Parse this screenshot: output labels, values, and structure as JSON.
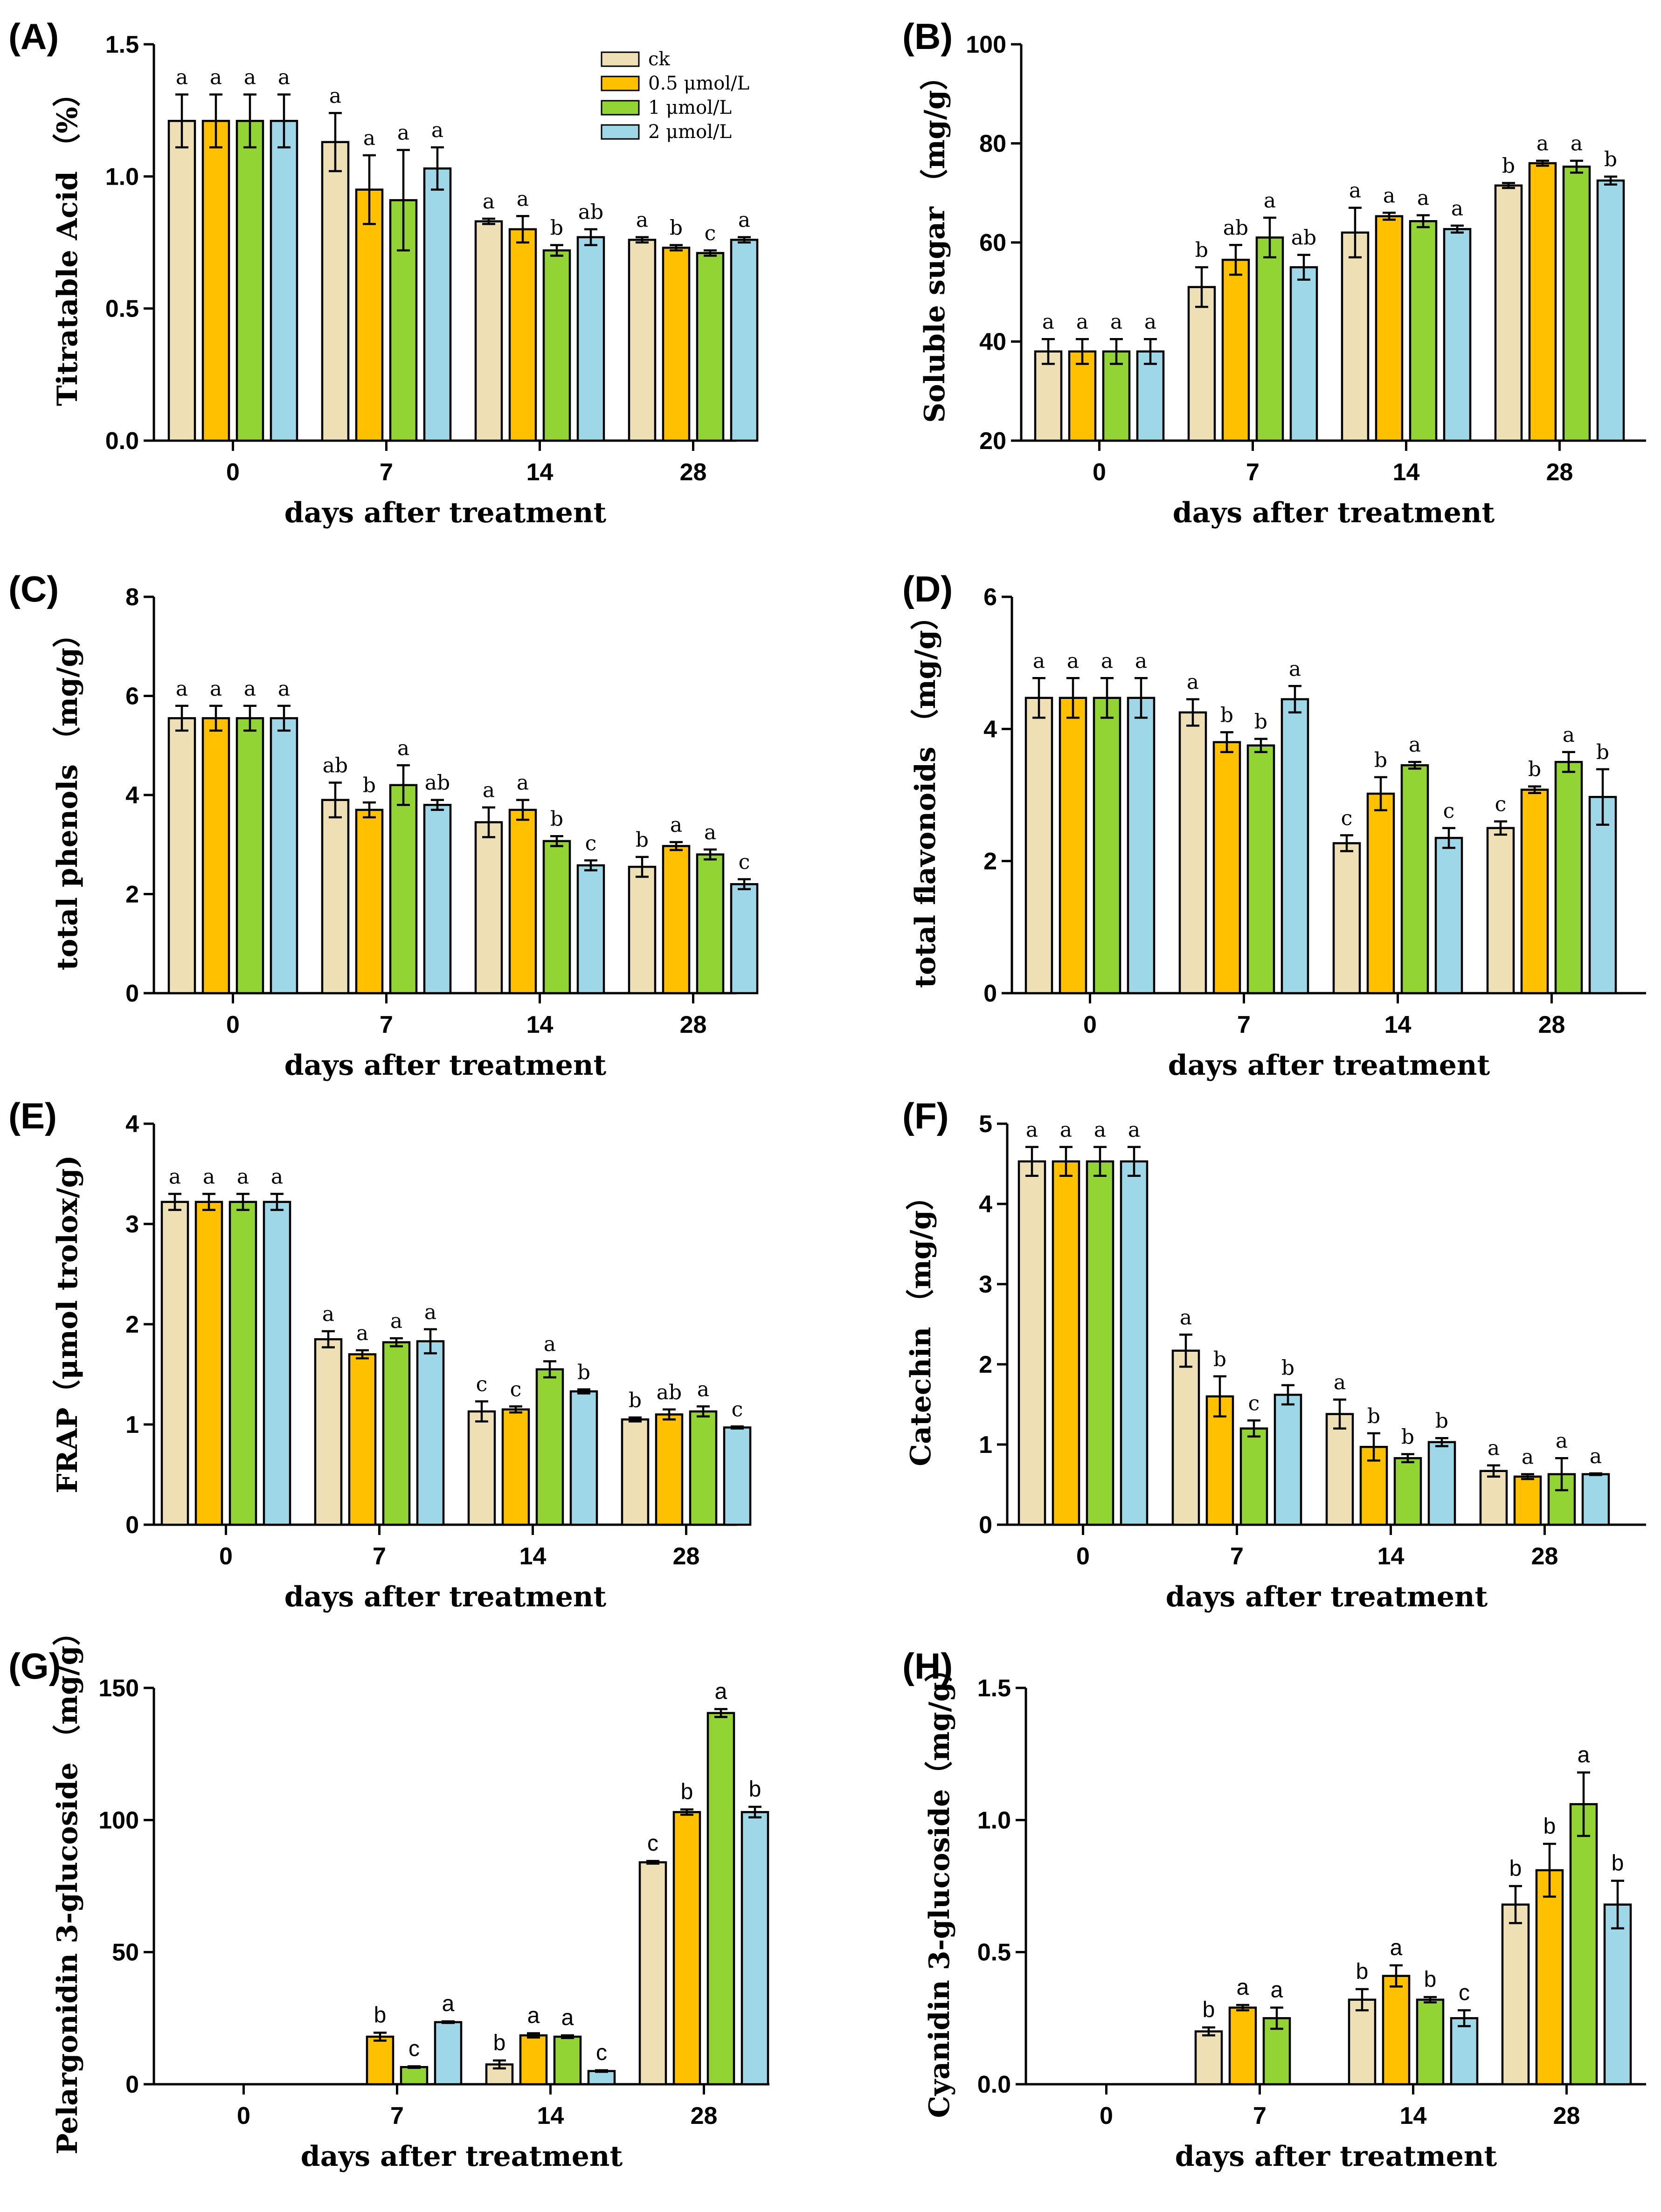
{
  "figure": {
    "legend": [
      {
        "label": "ck",
        "color": "#EEE0B4"
      },
      {
        "label": "0.5 μmol/L",
        "color": "#FFC000"
      },
      {
        "label": "1 μmol/L",
        "color": "#92D433"
      },
      {
        "label": "2 μmol/L",
        "color": "#9DD7E8"
      }
    ]
  },
  "chart_data": [
    {
      "panel": "(A)",
      "type": "bar",
      "ylabel": "Titratable Acid （%）",
      "xlabel": "days after treatment",
      "ylim": [
        0,
        1.5
      ],
      "yticks": [
        "0.0",
        "0.5",
        "1.0",
        "1.5"
      ],
      "categories": [
        "0",
        "7",
        "14",
        "28"
      ],
      "series": [
        {
          "name": "ck",
          "values": [
            1.21,
            1.13,
            0.83,
            0.76
          ],
          "errors": [
            0.1,
            0.11,
            0.01,
            0.01
          ],
          "letters": [
            "a",
            "a",
            "a",
            "a"
          ]
        },
        {
          "name": "0.5 μmol/L",
          "values": [
            1.21,
            0.95,
            0.8,
            0.73
          ],
          "errors": [
            0.1,
            0.13,
            0.05,
            0.01
          ],
          "letters": [
            "a",
            "a",
            "a",
            "b"
          ]
        },
        {
          "name": "1 μmol/L",
          "values": [
            1.21,
            0.91,
            0.72,
            0.71
          ],
          "errors": [
            0.1,
            0.19,
            0.02,
            0.01
          ],
          "letters": [
            "a",
            "a",
            "b",
            "c"
          ]
        },
        {
          "name": "2 μmol/L",
          "values": [
            1.21,
            1.03,
            0.77,
            0.76
          ],
          "errors": [
            0.1,
            0.08,
            0.03,
            0.01
          ],
          "letters": [
            "a",
            "a",
            "ab",
            "a"
          ]
        }
      ]
    },
    {
      "panel": "(B)",
      "type": "bar",
      "ylabel": "Soluble sugar （mg/g）",
      "xlabel": "days after treatment",
      "ylim": [
        20,
        100
      ],
      "yticks": [
        "20",
        "40",
        "60",
        "80",
        "100"
      ],
      "categories": [
        "0",
        "7",
        "14",
        "28"
      ],
      "series": [
        {
          "name": "ck",
          "values": [
            38,
            51,
            62,
            71.5
          ],
          "errors": [
            2.5,
            4,
            5,
            0.5
          ],
          "letters": [
            "a",
            "b",
            "a",
            "b"
          ]
        },
        {
          "name": "0.5 μmol/L",
          "values": [
            38,
            56.5,
            65.3,
            76
          ],
          "errors": [
            2.5,
            3,
            0.7,
            0.5
          ],
          "letters": [
            "a",
            "ab",
            "a",
            "a"
          ]
        },
        {
          "name": "1 μmol/L",
          "values": [
            38,
            61,
            64.3,
            75.3
          ],
          "errors": [
            2.5,
            4,
            1.2,
            1.2
          ],
          "letters": [
            "a",
            "a",
            "a",
            "a"
          ]
        },
        {
          "name": "2 μmol/L",
          "values": [
            38,
            55,
            62.7,
            72.5
          ],
          "errors": [
            2.5,
            2.5,
            0.7,
            0.8
          ],
          "letters": [
            "a",
            "ab",
            "a",
            "b"
          ]
        }
      ]
    },
    {
      "panel": "(C)",
      "type": "bar",
      "ylabel": "total phenols （mg/g）",
      "xlabel": "days after treatment",
      "ylim": [
        0,
        8
      ],
      "yticks": [
        "0",
        "2",
        "4",
        "6",
        "8"
      ],
      "categories": [
        "0",
        "7",
        "14",
        "28"
      ],
      "series": [
        {
          "name": "ck",
          "values": [
            5.55,
            3.9,
            3.45,
            2.55
          ],
          "errors": [
            0.25,
            0.35,
            0.3,
            0.2
          ],
          "letters": [
            "a",
            "ab",
            "a",
            "b"
          ]
        },
        {
          "name": "0.5 μmol/L",
          "values": [
            5.55,
            3.7,
            3.7,
            2.97
          ],
          "errors": [
            0.25,
            0.15,
            0.2,
            0.08
          ],
          "letters": [
            "a",
            "b",
            "a",
            "a"
          ]
        },
        {
          "name": "1 μmol/L",
          "values": [
            5.55,
            4.2,
            3.07,
            2.8
          ],
          "errors": [
            0.25,
            0.4,
            0.1,
            0.1
          ],
          "letters": [
            "a",
            "a",
            "b",
            "a"
          ]
        },
        {
          "name": "2 μmol/L",
          "values": [
            5.55,
            3.8,
            2.58,
            2.2
          ],
          "errors": [
            0.25,
            0.1,
            0.1,
            0.1
          ],
          "letters": [
            "a",
            "ab",
            "c",
            "c"
          ]
        }
      ]
    },
    {
      "panel": "(D)",
      "type": "bar",
      "ylabel": "total flavonoids （mg/g）",
      "xlabel": "days after treatment",
      "ylim": [
        0,
        6
      ],
      "yticks": [
        "0",
        "2",
        "4",
        "6"
      ],
      "categories": [
        "0",
        "7",
        "14",
        "28"
      ],
      "series": [
        {
          "name": "ck",
          "values": [
            4.47,
            4.25,
            2.27,
            2.5
          ],
          "errors": [
            0.3,
            0.2,
            0.12,
            0.1
          ],
          "letters": [
            "a",
            "a",
            "c",
            "c"
          ]
        },
        {
          "name": "0.5 μmol/L",
          "values": [
            4.47,
            3.8,
            3.02,
            3.08
          ],
          "errors": [
            0.3,
            0.15,
            0.25,
            0.05
          ],
          "letters": [
            "a",
            "b",
            "b",
            "b"
          ]
        },
        {
          "name": "1 μmol/L",
          "values": [
            4.47,
            3.75,
            3.45,
            3.5
          ],
          "errors": [
            0.3,
            0.1,
            0.05,
            0.15
          ],
          "letters": [
            "a",
            "b",
            "a",
            "a"
          ]
        },
        {
          "name": "2 μmol/L",
          "values": [
            4.47,
            4.45,
            2.35,
            2.97
          ],
          "errors": [
            0.3,
            0.2,
            0.15,
            0.42
          ],
          "letters": [
            "a",
            "a",
            "c",
            "b"
          ]
        }
      ]
    },
    {
      "panel": "(E)",
      "type": "bar",
      "ylabel": "FRAP（μmol trolox/g)",
      "xlabel": "days after treatment",
      "ylim": [
        0,
        4
      ],
      "yticks": [
        "0",
        "1",
        "2",
        "3",
        "4"
      ],
      "categories": [
        "0",
        "7",
        "14",
        "28"
      ],
      "series": [
        {
          "name": "ck",
          "values": [
            3.22,
            1.85,
            1.13,
            1.05
          ],
          "errors": [
            0.08,
            0.08,
            0.1,
            0.02
          ],
          "letters": [
            "a",
            "a",
            "c",
            "b"
          ]
        },
        {
          "name": "0.5 μmol/L",
          "values": [
            3.22,
            1.7,
            1.15,
            1.1
          ],
          "errors": [
            0.08,
            0.04,
            0.03,
            0.05
          ],
          "letters": [
            "a",
            "a",
            "c",
            "ab"
          ]
        },
        {
          "name": "1 μmol/L",
          "values": [
            3.22,
            1.82,
            1.55,
            1.13
          ],
          "errors": [
            0.08,
            0.04,
            0.08,
            0.05
          ],
          "letters": [
            "a",
            "a",
            "a",
            "a"
          ]
        },
        {
          "name": "2 μmol/L",
          "values": [
            3.22,
            1.83,
            1.33,
            0.97
          ],
          "errors": [
            0.08,
            0.12,
            0.02,
            0.01
          ],
          "letters": [
            "a",
            "a",
            "b",
            "c"
          ]
        }
      ]
    },
    {
      "panel": "(F)",
      "type": "bar",
      "ylabel": "Catechin （mg/g）",
      "xlabel": "days after treatment",
      "ylim": [
        0,
        5
      ],
      "yticks": [
        "0",
        "1",
        "2",
        "3",
        "4",
        "5"
      ],
      "categories": [
        "0",
        "7",
        "14",
        "28"
      ],
      "series": [
        {
          "name": "ck",
          "values": [
            4.53,
            2.17,
            1.38,
            0.67
          ],
          "errors": [
            0.18,
            0.2,
            0.18,
            0.07
          ],
          "letters": [
            "a",
            "a",
            "a",
            "a"
          ]
        },
        {
          "name": "0.5 μmol/L",
          "values": [
            4.53,
            1.6,
            0.97,
            0.6
          ],
          "errors": [
            0.18,
            0.25,
            0.17,
            0.03
          ],
          "letters": [
            "a",
            "b",
            "b",
            "a"
          ]
        },
        {
          "name": "1 μmol/L",
          "values": [
            4.53,
            1.2,
            0.83,
            0.63
          ],
          "errors": [
            0.18,
            0.1,
            0.05,
            0.2
          ],
          "letters": [
            "a",
            "c",
            "b",
            "a"
          ]
        },
        {
          "name": "2 μmol/L",
          "values": [
            4.53,
            1.62,
            1.03,
            0.63
          ],
          "errors": [
            0.18,
            0.12,
            0.05,
            0.01
          ],
          "letters": [
            "a",
            "b",
            "b",
            "a"
          ]
        }
      ]
    },
    {
      "panel": "(G)",
      "type": "bar",
      "ylabel": "Pelargonidin 3-glucoside （mg/g）",
      "xlabel": "days after treatment",
      "ylim": [
        0,
        150
      ],
      "yticks": [
        "0",
        "50",
        "100",
        "150"
      ],
      "categories": [
        "0",
        "7",
        "14",
        "28"
      ],
      "series": [
        {
          "name": "ck",
          "values": [
            0,
            0,
            7.5,
            84
          ],
          "errors": [
            0,
            0,
            1.5,
            0.5
          ],
          "letters": [
            "",
            "",
            "b",
            "c"
          ]
        },
        {
          "name": "0.5 μmol/L",
          "values": [
            0,
            18,
            18.5,
            103
          ],
          "errors": [
            0,
            1.5,
            0.8,
            1
          ],
          "letters": [
            "",
            "b",
            "a",
            "b"
          ]
        },
        {
          "name": "1 μmol/L",
          "values": [
            0,
            6.5,
            18,
            140.5
          ],
          "errors": [
            0,
            0.3,
            0.5,
            1.5
          ],
          "letters": [
            "",
            "c",
            "a",
            "a"
          ]
        },
        {
          "name": "2 μmol/L",
          "values": [
            0,
            23.5,
            5,
            103
          ],
          "errors": [
            0,
            0.3,
            0.3,
            2
          ],
          "letters": [
            "",
            "a",
            "c",
            "b"
          ]
        }
      ]
    },
    {
      "panel": "(H)",
      "type": "bar",
      "ylabel": "Cyanidin 3-glucoside（mg/g）",
      "xlabel": "days after treatment",
      "ylim": [
        0,
        1.5
      ],
      "yticks": [
        "0.0",
        "0.5",
        "1.0",
        "1.5"
      ],
      "categories": [
        "0",
        "7",
        "14",
        "28"
      ],
      "series": [
        {
          "name": "ck",
          "values": [
            0,
            0.2,
            0.32,
            0.68
          ],
          "errors": [
            0,
            0.015,
            0.04,
            0.07
          ],
          "letters": [
            "",
            "b",
            "b",
            "b"
          ]
        },
        {
          "name": "0.5 μmol/L",
          "values": [
            0,
            0.29,
            0.41,
            0.81
          ],
          "errors": [
            0,
            0.01,
            0.04,
            0.1
          ],
          "letters": [
            "",
            "a",
            "a",
            "b"
          ]
        },
        {
          "name": "1 μmol/L",
          "values": [
            0,
            0.25,
            0.32,
            1.06
          ],
          "errors": [
            0,
            0.04,
            0.01,
            0.12
          ],
          "letters": [
            "",
            "a",
            "b",
            "a"
          ]
        },
        {
          "name": "2 μmol/L",
          "values": [
            0,
            0,
            0.25,
            0.68
          ],
          "errors": [
            0,
            0,
            0.03,
            0.09
          ],
          "letters": [
            "",
            "",
            "c",
            "b"
          ]
        }
      ]
    }
  ]
}
